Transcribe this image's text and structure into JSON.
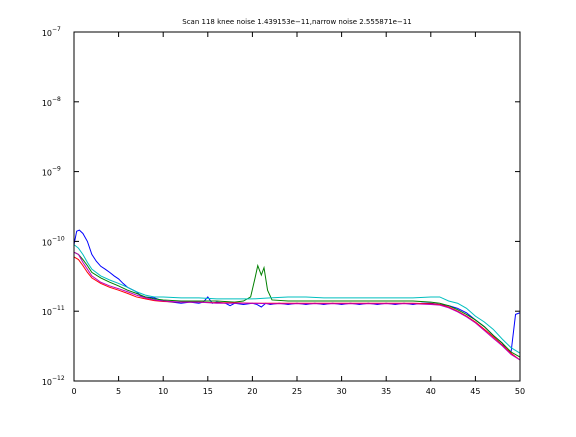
{
  "chart_data": {
    "type": "line",
    "title": "Scan 118 knee noise 1.439153e−11,narrow noise 2.555871e−11",
    "xlabel": "",
    "ylabel": "",
    "xlim": [
      0,
      50
    ],
    "ylim": [
      1e-12,
      1e-07
    ],
    "yscale": "log",
    "grid": false,
    "x_ticks": [
      0,
      5,
      10,
      15,
      20,
      25,
      30,
      35,
      40,
      45,
      50
    ],
    "x_tick_labels": [
      "0",
      "5",
      "10",
      "15",
      "20",
      "25",
      "30",
      "35",
      "40",
      "45",
      "50"
    ],
    "y_ticks": [
      1e-12,
      1e-11,
      1e-10,
      1e-09,
      1e-08,
      1e-07
    ],
    "y_tick_labels": [
      {
        "base": "10",
        "exp": "−12"
      },
      {
        "base": "10",
        "exp": "−11"
      },
      {
        "base": "10",
        "exp": "−10"
      },
      {
        "base": "10",
        "exp": "−9"
      },
      {
        "base": "10",
        "exp": "−8"
      },
      {
        "base": "10",
        "exp": "−7"
      }
    ],
    "series": [
      {
        "color": "#0000ff",
        "points": [
          [
            0,
            9e-11
          ],
          [
            0.3,
            1.4e-10
          ],
          [
            0.6,
            1.45e-10
          ],
          [
            1,
            1.3e-10
          ],
          [
            1.5,
            1e-10
          ],
          [
            2,
            6.5e-11
          ],
          [
            2.5,
            5.2e-11
          ],
          [
            3,
            4.4e-11
          ],
          [
            3.5,
            4e-11
          ],
          [
            4,
            3.6e-11
          ],
          [
            4.5,
            3.2e-11
          ],
          [
            5,
            2.9e-11
          ],
          [
            5.5,
            2.5e-11
          ],
          [
            6,
            2.2e-11
          ],
          [
            7,
            1.9e-11
          ],
          [
            7.5,
            1.65e-11
          ],
          [
            8,
            1.6e-11
          ],
          [
            9,
            1.55e-11
          ],
          [
            10,
            1.4e-11
          ],
          [
            11,
            1.35e-11
          ],
          [
            12,
            1.3e-11
          ],
          [
            13,
            1.35e-11
          ],
          [
            14,
            1.3e-11
          ],
          [
            14.5,
            1.35e-11
          ],
          [
            15,
            1.6e-11
          ],
          [
            15.5,
            1.3e-11
          ],
          [
            16,
            1.35e-11
          ],
          [
            17,
            1.3e-11
          ],
          [
            17.5,
            1.2e-11
          ],
          [
            18,
            1.3e-11
          ],
          [
            19,
            1.25e-11
          ],
          [
            20,
            1.3e-11
          ],
          [
            20.5,
            1.25e-11
          ],
          [
            21,
            1.15e-11
          ],
          [
            21.5,
            1.3e-11
          ],
          [
            22,
            1.25e-11
          ],
          [
            23,
            1.3e-11
          ],
          [
            24,
            1.25e-11
          ],
          [
            25,
            1.3e-11
          ],
          [
            26,
            1.25e-11
          ],
          [
            27,
            1.3e-11
          ],
          [
            28,
            1.25e-11
          ],
          [
            29,
            1.3e-11
          ],
          [
            30,
            1.25e-11
          ],
          [
            31,
            1.3e-11
          ],
          [
            32,
            1.25e-11
          ],
          [
            33,
            1.3e-11
          ],
          [
            34,
            1.25e-11
          ],
          [
            35,
            1.3e-11
          ],
          [
            36,
            1.25e-11
          ],
          [
            37,
            1.3e-11
          ],
          [
            38,
            1.25e-11
          ],
          [
            39,
            1.3e-11
          ],
          [
            40,
            1.3e-11
          ],
          [
            41,
            1.25e-11
          ],
          [
            42,
            1.2e-11
          ],
          [
            43,
            1.1e-11
          ],
          [
            44,
            9.5e-12
          ],
          [
            45,
            7.5e-12
          ],
          [
            46,
            6e-12
          ],
          [
            47,
            4.5e-12
          ],
          [
            48,
            3.5e-12
          ],
          [
            48.5,
            2.8e-12
          ],
          [
            49,
            2.6e-12
          ],
          [
            49.5,
            9e-12
          ],
          [
            50,
            9.5e-12
          ]
        ]
      },
      {
        "color": "#008000",
        "points": [
          [
            0,
            7e-11
          ],
          [
            0.5,
            6.5e-11
          ],
          [
            1,
            5.5e-11
          ],
          [
            1.5,
            4.5e-11
          ],
          [
            2,
            3.6e-11
          ],
          [
            3,
            3e-11
          ],
          [
            4,
            2.6e-11
          ],
          [
            5,
            2.3e-11
          ],
          [
            6,
            2e-11
          ],
          [
            7,
            1.8e-11
          ],
          [
            8,
            1.6e-11
          ],
          [
            9,
            1.5e-11
          ],
          [
            10,
            1.45e-11
          ],
          [
            12,
            1.4e-11
          ],
          [
            14,
            1.4e-11
          ],
          [
            16,
            1.4e-11
          ],
          [
            18,
            1.35e-11
          ],
          [
            19,
            1.4e-11
          ],
          [
            19.8,
            1.6e-11
          ],
          [
            20.3,
            3e-11
          ],
          [
            20.6,
            4.5e-11
          ],
          [
            21,
            3.3e-11
          ],
          [
            21.3,
            4.2e-11
          ],
          [
            21.7,
            2e-11
          ],
          [
            22.2,
            1.45e-11
          ],
          [
            24,
            1.4e-11
          ],
          [
            26,
            1.4e-11
          ],
          [
            28,
            1.4e-11
          ],
          [
            30,
            1.4e-11
          ],
          [
            32,
            1.4e-11
          ],
          [
            34,
            1.4e-11
          ],
          [
            36,
            1.4e-11
          ],
          [
            38,
            1.4e-11
          ],
          [
            40,
            1.35e-11
          ],
          [
            41,
            1.3e-11
          ],
          [
            42,
            1.2e-11
          ],
          [
            43,
            1.05e-11
          ],
          [
            44,
            9e-12
          ],
          [
            45,
            7.5e-12
          ],
          [
            46,
            6e-12
          ],
          [
            47,
            4.5e-12
          ],
          [
            48,
            3.5e-12
          ],
          [
            49,
            2.6e-12
          ],
          [
            50,
            2.2e-12
          ]
        ]
      },
      {
        "color": "#ff0000",
        "points": [
          [
            0,
            6e-11
          ],
          [
            0.5,
            5.5e-11
          ],
          [
            1,
            4.5e-11
          ],
          [
            1.5,
            3.6e-11
          ],
          [
            2,
            3e-11
          ],
          [
            3,
            2.5e-11
          ],
          [
            4,
            2.2e-11
          ],
          [
            5,
            2e-11
          ],
          [
            6,
            1.8e-11
          ],
          [
            7,
            1.6e-11
          ],
          [
            8,
            1.5e-11
          ],
          [
            9,
            1.42e-11
          ],
          [
            10,
            1.38e-11
          ],
          [
            12,
            1.35e-11
          ],
          [
            14,
            1.35e-11
          ],
          [
            16,
            1.32e-11
          ],
          [
            18,
            1.32e-11
          ],
          [
            20,
            1.3e-11
          ],
          [
            22,
            1.3e-11
          ],
          [
            24,
            1.3e-11
          ],
          [
            26,
            1.3e-11
          ],
          [
            28,
            1.3e-11
          ],
          [
            30,
            1.3e-11
          ],
          [
            32,
            1.3e-11
          ],
          [
            34,
            1.3e-11
          ],
          [
            36,
            1.3e-11
          ],
          [
            38,
            1.3e-11
          ],
          [
            40,
            1.28e-11
          ],
          [
            41,
            1.25e-11
          ],
          [
            42,
            1.15e-11
          ],
          [
            43,
            1e-11
          ],
          [
            44,
            8.5e-12
          ],
          [
            45,
            7e-12
          ],
          [
            46,
            5.5e-12
          ],
          [
            47,
            4.3e-12
          ],
          [
            48,
            3.3e-12
          ],
          [
            49,
            2.5e-12
          ],
          [
            50,
            2e-12
          ]
        ]
      },
      {
        "color": "#00bfbf",
        "points": [
          [
            0,
            9e-11
          ],
          [
            0.5,
            8e-11
          ],
          [
            1,
            6.5e-11
          ],
          [
            1.5,
            5e-11
          ],
          [
            2,
            4e-11
          ],
          [
            3,
            3.2e-11
          ],
          [
            4,
            2.8e-11
          ],
          [
            5,
            2.5e-11
          ],
          [
            6,
            2.2e-11
          ],
          [
            7,
            1.9e-11
          ],
          [
            8,
            1.7e-11
          ],
          [
            9,
            1.6e-11
          ],
          [
            10,
            1.6e-11
          ],
          [
            12,
            1.55e-11
          ],
          [
            14,
            1.55e-11
          ],
          [
            16,
            1.5e-11
          ],
          [
            18,
            1.5e-11
          ],
          [
            20,
            1.5e-11
          ],
          [
            22,
            1.55e-11
          ],
          [
            24,
            1.6e-11
          ],
          [
            26,
            1.6e-11
          ],
          [
            28,
            1.55e-11
          ],
          [
            30,
            1.55e-11
          ],
          [
            32,
            1.55e-11
          ],
          [
            34,
            1.55e-11
          ],
          [
            36,
            1.55e-11
          ],
          [
            38,
            1.55e-11
          ],
          [
            40,
            1.6e-11
          ],
          [
            41,
            1.6e-11
          ],
          [
            42,
            1.4e-11
          ],
          [
            43,
            1.3e-11
          ],
          [
            44,
            1.1e-11
          ],
          [
            45,
            8.5e-12
          ],
          [
            46,
            7e-12
          ],
          [
            47,
            5.5e-12
          ],
          [
            48,
            4e-12
          ],
          [
            49,
            3e-12
          ],
          [
            50,
            2.5e-12
          ]
        ]
      },
      {
        "color": "#bf00bf",
        "points": [
          [
            0,
            7e-11
          ],
          [
            0.5,
            6.5e-11
          ],
          [
            1,
            5e-11
          ],
          [
            1.5,
            4e-11
          ],
          [
            2,
            3.2e-11
          ],
          [
            3,
            2.6e-11
          ],
          [
            4,
            2.3e-11
          ],
          [
            5,
            2.1e-11
          ],
          [
            6,
            1.9e-11
          ],
          [
            7,
            1.7e-11
          ],
          [
            8,
            1.55e-11
          ],
          [
            9,
            1.45e-11
          ],
          [
            10,
            1.4e-11
          ],
          [
            12,
            1.35e-11
          ],
          [
            14,
            1.35e-11
          ],
          [
            16,
            1.3e-11
          ],
          [
            18,
            1.3e-11
          ],
          [
            20,
            1.3e-11
          ],
          [
            22,
            1.28e-11
          ],
          [
            24,
            1.28e-11
          ],
          [
            26,
            1.28e-11
          ],
          [
            28,
            1.28e-11
          ],
          [
            30,
            1.28e-11
          ],
          [
            32,
            1.28e-11
          ],
          [
            34,
            1.28e-11
          ],
          [
            36,
            1.28e-11
          ],
          [
            38,
            1.28e-11
          ],
          [
            40,
            1.25e-11
          ],
          [
            41,
            1.22e-11
          ],
          [
            42,
            1.12e-11
          ],
          [
            43,
            9.8e-12
          ],
          [
            44,
            8.3e-12
          ],
          [
            45,
            6.8e-12
          ],
          [
            46,
            5.3e-12
          ],
          [
            47,
            4.1e-12
          ],
          [
            48,
            3.2e-12
          ],
          [
            49,
            2.4e-12
          ],
          [
            50,
            2e-12
          ]
        ]
      }
    ]
  }
}
